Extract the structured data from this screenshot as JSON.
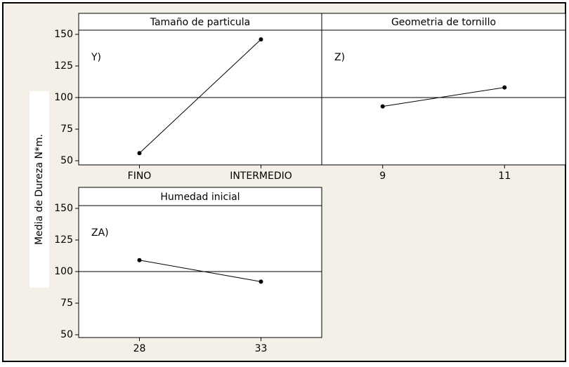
{
  "chart_data": [
    {
      "type": "line",
      "title": "Tamaño de particula",
      "annotation": "Y)",
      "ylabel": "Media de Dureza N*m.",
      "categories": [
        "FINO",
        "INTERMEDIO"
      ],
      "values": [
        56,
        146
      ],
      "color": "#000000",
      "ylim": [
        46.7,
        153.3
      ],
      "yticks": [
        50,
        75,
        100,
        125,
        150
      ],
      "reference_line": 100
    },
    {
      "type": "line",
      "title": "Geometria de tornillo",
      "annotation": "Z)",
      "categories": [
        "9",
        "11"
      ],
      "values": [
        93,
        108
      ],
      "color": "#000000",
      "ylim": [
        46.7,
        153.3
      ],
      "yticks": [
        50,
        75,
        100,
        125,
        150
      ],
      "reference_line": 100
    },
    {
      "type": "line",
      "title": "Humedad inicial",
      "annotation": "ZA)",
      "categories": [
        "28",
        "33"
      ],
      "values": [
        109,
        92
      ],
      "color": "#000000",
      "ylim": [
        47.8,
        152.2
      ],
      "yticks": [
        50,
        75,
        100,
        125,
        150
      ],
      "reference_line": 100
    }
  ]
}
